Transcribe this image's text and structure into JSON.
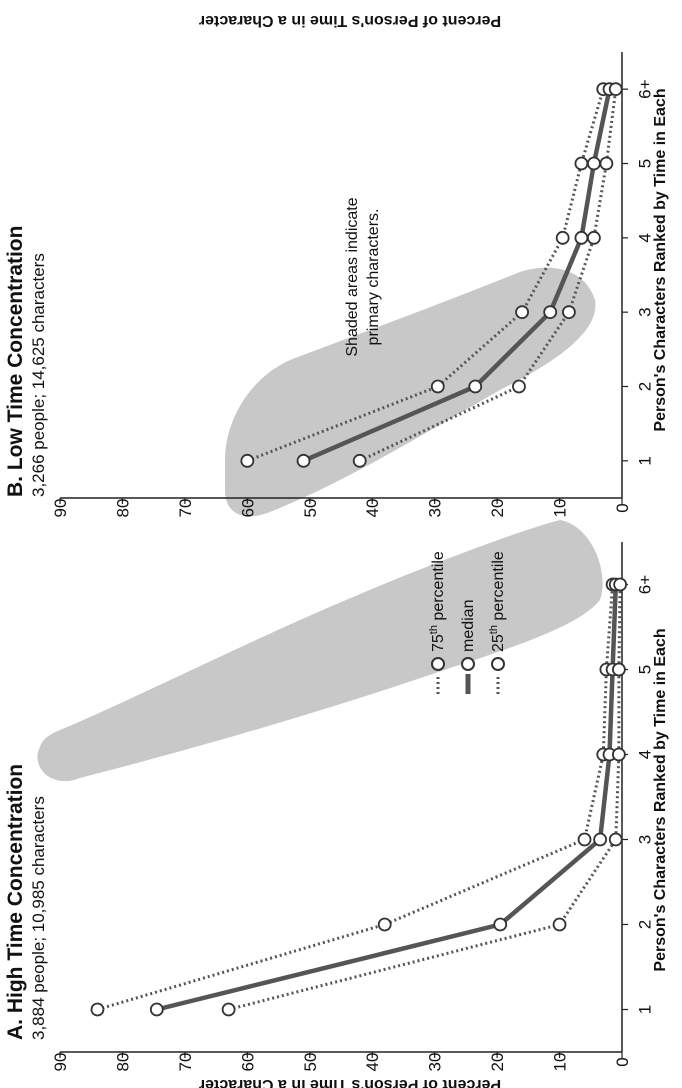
{
  "chart_data": [
    {
      "type": "line",
      "panel": "A",
      "title": "A. High Time Concentration",
      "subtitle": "3,884 people; 10,985 characters",
      "xlabel": "Person's Characters Ranked by Time in Each",
      "ylabel": "Percent of Person's Time in a Character",
      "categories": [
        "1",
        "2",
        "3",
        "4",
        "5",
        "6+"
      ],
      "ylim": [
        0,
        90
      ],
      "yticks": [
        "0",
        "10",
        "20",
        "30",
        "40",
        "50",
        "60",
        "70",
        "80",
        "90"
      ],
      "series": [
        {
          "name": "75th percentile",
          "style": "dotted",
          "values": [
            84,
            38,
            6,
            3,
            2.5,
            1.5
          ]
        },
        {
          "name": "median",
          "style": "solid",
          "values": [
            74.5,
            19.5,
            3.5,
            2,
            1.5,
            1
          ]
        },
        {
          "name": "25th percentile",
          "style": "dotted",
          "values": [
            63,
            10,
            1,
            0.5,
            0.5,
            0.3
          ]
        }
      ],
      "shaded_region": "primary characters (ranks 1-2)"
    },
    {
      "type": "line",
      "panel": "B",
      "title": "B. Low Time Concentration",
      "subtitle": "3,266 people; 14,625 characters",
      "xlabel": "Person's Characters Ranked by Time in Each",
      "ylabel": "Percent of Person's Time in a Character",
      "categories": [
        "1",
        "2",
        "3",
        "4",
        "5",
        "6+"
      ],
      "ylim": [
        0,
        90
      ],
      "yticks": [
        "0",
        "10",
        "20",
        "30",
        "40",
        "50",
        "60",
        "70",
        "80",
        "90"
      ],
      "series": [
        {
          "name": "75th percentile",
          "style": "dotted",
          "values": [
            60,
            29.5,
            16,
            9.5,
            6.5,
            3
          ]
        },
        {
          "name": "median",
          "style": "solid",
          "values": [
            51,
            23.5,
            11.5,
            6.5,
            4.5,
            2
          ]
        },
        {
          "name": "25th percentile",
          "style": "dotted",
          "values": [
            42,
            16.5,
            8.5,
            4.5,
            2.5,
            1
          ]
        }
      ],
      "shaded_region": "primary characters (ranks 1-3)",
      "annotation": [
        "Shaded areas indicate",
        "primary characters."
      ]
    }
  ],
  "legend": {
    "p75_base": "75",
    "p75_sup": "th",
    "p75_tail": " percentile",
    "median": "median",
    "p25_base": "25",
    "p25_sup": "th",
    "p25_tail": " percentile"
  },
  "colors": {
    "line": "#555555",
    "shade": "#c8c8c8",
    "marker_fill": "#ffffff",
    "marker_stroke": "#333333"
  }
}
